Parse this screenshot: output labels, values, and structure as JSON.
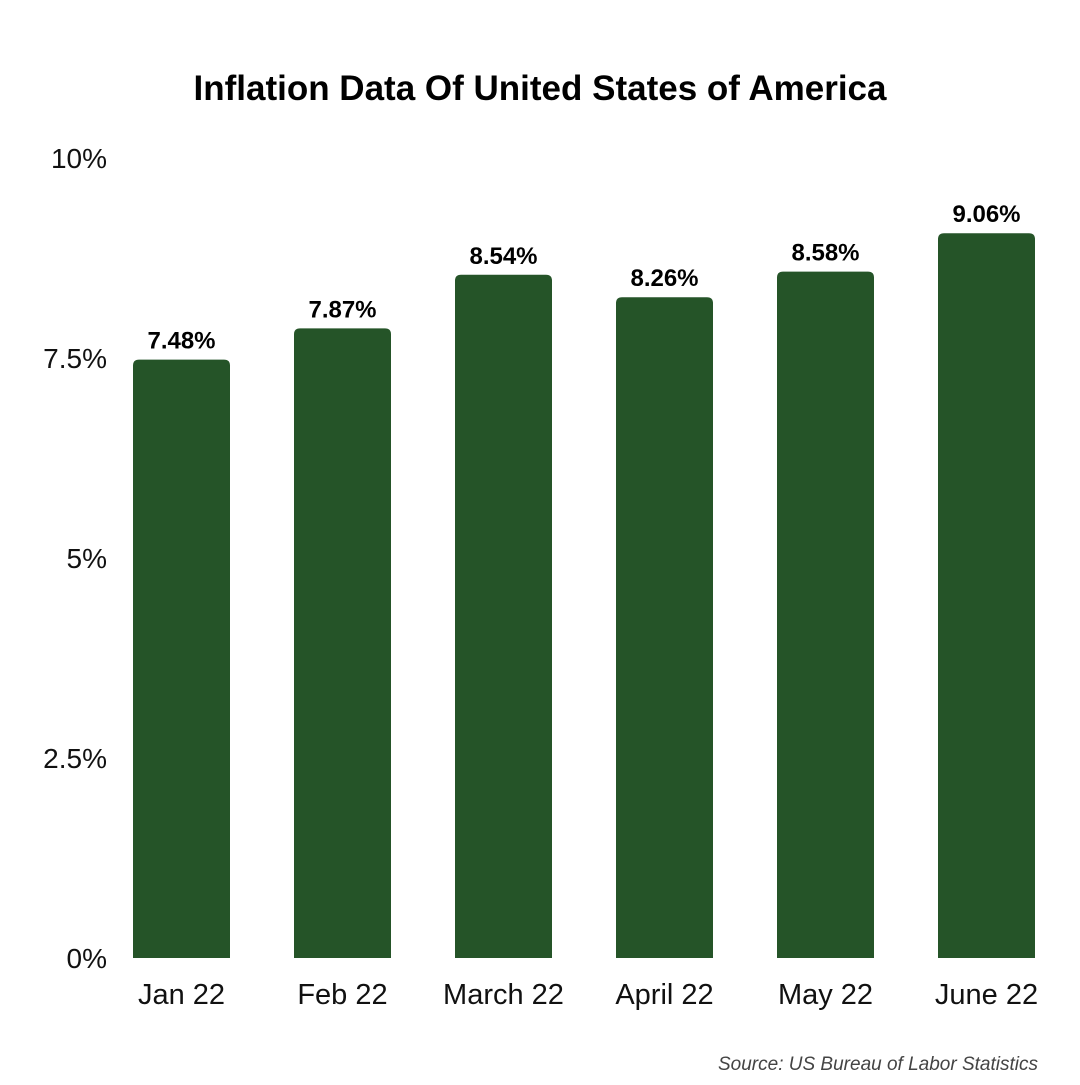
{
  "chart_data": {
    "type": "bar",
    "title": "Inflation Data Of United  States of America",
    "categories": [
      "Jan 22",
      "Feb 22",
      "March 22",
      "April 22",
      "May 22",
      "June 22"
    ],
    "series": [
      {
        "values": [
          7.48,
          7.87,
          8.54,
          8.26,
          8.58,
          9.06
        ],
        "value_labels": [
          "7.48%",
          "7.87%",
          "8.54%",
          "8.26%",
          "8.58%",
          "9.06%"
        ]
      }
    ],
    "xlabel": "",
    "ylabel": "",
    "ylim": [
      0,
      10
    ],
    "y_ticks": [
      0,
      2.5,
      5,
      7.5,
      10
    ],
    "y_tick_labels": [
      "0%",
      "2.5%",
      "5%",
      "7.5%",
      "10%"
    ],
    "grid": false,
    "bar_color": "#255428",
    "source": "Source: US Bureau of Labor Statistics"
  }
}
